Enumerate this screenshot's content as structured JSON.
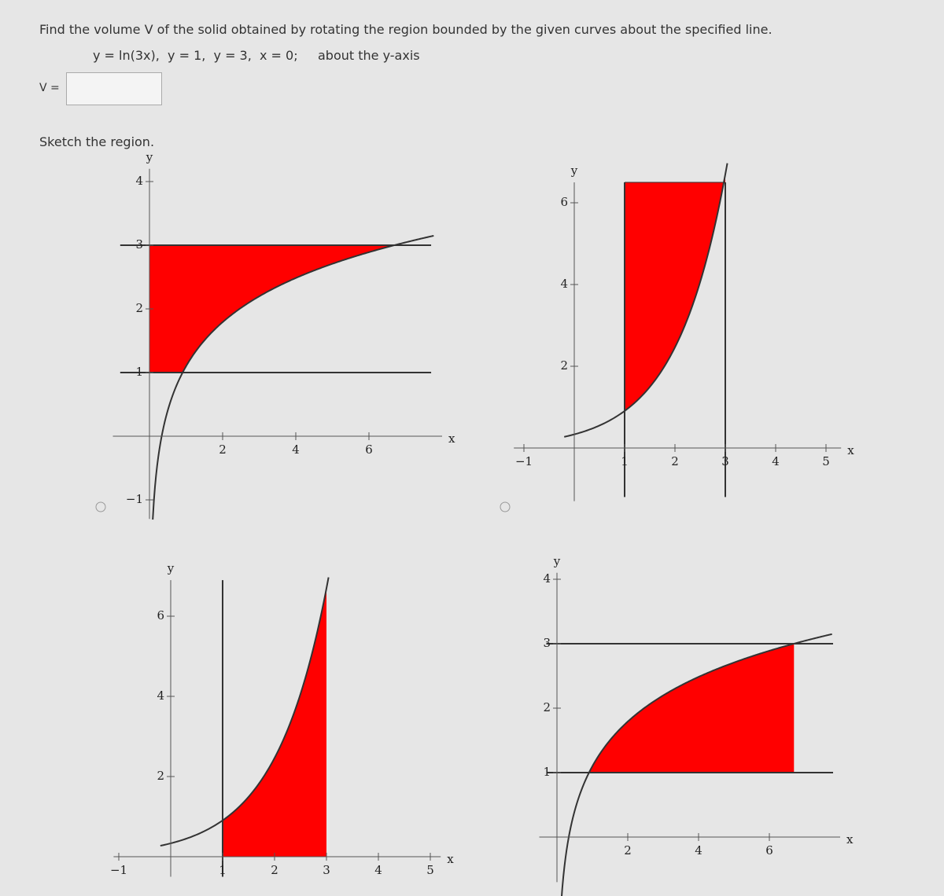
{
  "question": "Find the volume V of the solid obtained by rotating the region bounded by the given curves about the specified line.",
  "curves": "y = ln(3x),  y = 1,  y = 3,  x = 0;",
  "axis_of_rotation": "about the y-axis",
  "answer_label": "V =",
  "sketch_prompt": "Sketch the region.",
  "graphs": [
    {
      "x_axis_label": "x",
      "y_axis_label": "y",
      "x_tick_labels": [
        "2",
        "4",
        "6"
      ],
      "y_tick_labels": [
        "4",
        "3",
        "2",
        "1",
        "−1"
      ]
    },
    {
      "x_axis_label": "x",
      "y_axis_label": "y",
      "x_tick_labels": [
        "−1",
        "1",
        "2",
        "3",
        "4",
        "5"
      ],
      "y_tick_labels": [
        "6",
        "4",
        "2"
      ]
    },
    {
      "x_axis_label": "x",
      "y_axis_label": "y",
      "x_tick_labels": [
        "−1",
        "1",
        "2",
        "3",
        "4",
        "5"
      ],
      "y_tick_labels": [
        "6",
        "4",
        "2"
      ]
    },
    {
      "x_axis_label": "x",
      "y_axis_label": "y",
      "x_tick_labels": [
        "2",
        "4",
        "6"
      ],
      "y_tick_labels": [
        "4",
        "3",
        "2",
        "1"
      ]
    }
  ]
}
